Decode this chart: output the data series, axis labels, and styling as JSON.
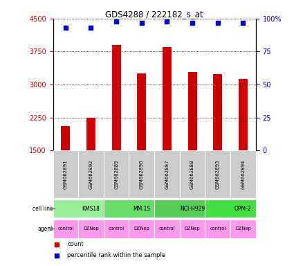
{
  "title": "GDS4288 / 222182_s_at",
  "samples": [
    "GSM662891",
    "GSM662892",
    "GSM662889",
    "GSM662890",
    "GSM662887",
    "GSM662888",
    "GSM662893",
    "GSM662894"
  ],
  "counts": [
    2050,
    2250,
    3900,
    3250,
    3850,
    3280,
    3230,
    3120
  ],
  "percentile_ranks": [
    93,
    93,
    98,
    97,
    98,
    97,
    97,
    97
  ],
  "cell_lines": [
    {
      "name": "KMS18",
      "span": [
        0,
        2
      ],
      "color": "#99EE99"
    },
    {
      "name": "MM.1S",
      "span": [
        2,
        4
      ],
      "color": "#66DD66"
    },
    {
      "name": "NCI-H929",
      "span": [
        4,
        6
      ],
      "color": "#55CC55"
    },
    {
      "name": "OPM-2",
      "span": [
        6,
        8
      ],
      "color": "#44DD44"
    }
  ],
  "agents": [
    "control",
    "DZNep",
    "control",
    "DZNep",
    "control",
    "DZNep",
    "control",
    "DZNep"
  ],
  "agent_color": "#FF99EE",
  "bar_color": "#CC0000",
  "dot_color": "#0000CC",
  "ylim_left": [
    1500,
    4500
  ],
  "yticks_left": [
    1500,
    2250,
    3000,
    3750,
    4500
  ],
  "ylim_right": [
    0,
    100
  ],
  "yticks_right": [
    0,
    25,
    50,
    75,
    100
  ],
  "sample_box_color": "#CCCCCC",
  "label_color_left": "#CC0000",
  "label_color_right": "#0000CC"
}
